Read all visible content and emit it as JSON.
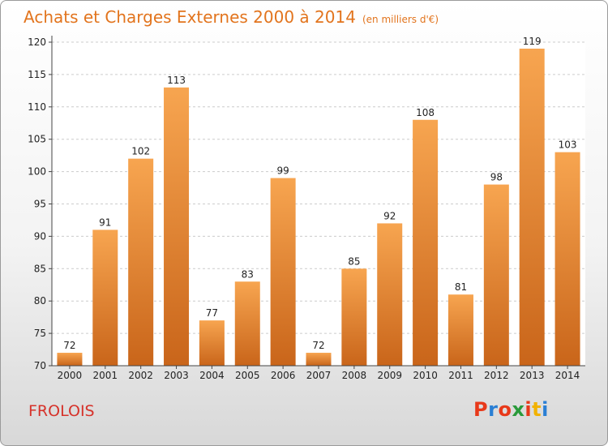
{
  "title": "Achats et Charges Externes 2000 à 2014",
  "unit": "(en milliers d'€)",
  "place": "FROLOIS",
  "logo": {
    "text": "Proxiti",
    "colors": [
      "#e8391a",
      "#2a7fd4",
      "#e8391a",
      "#2a9a3a",
      "#e8391a",
      "#f2b200",
      "#2a7fd4"
    ]
  },
  "colors": {
    "bar_top": "#f7a550",
    "bar_bottom": "#c9651a",
    "title": "#e2741d",
    "place": "#d6322a",
    "grid": "#cccccc"
  },
  "chart_data": {
    "type": "bar",
    "categories": [
      "2000",
      "2001",
      "2002",
      "2003",
      "2004",
      "2005",
      "2006",
      "2007",
      "2008",
      "2009",
      "2010",
      "2011",
      "2012",
      "2013",
      "2014"
    ],
    "values": [
      72,
      91,
      102,
      113,
      77,
      83,
      99,
      72,
      85,
      92,
      108,
      81,
      98,
      119,
      103
    ],
    "ylim": [
      70,
      120
    ],
    "yticks": [
      70,
      75,
      80,
      85,
      90,
      95,
      100,
      105,
      110,
      115,
      120
    ],
    "grid": true,
    "title": "Achats et Charges Externes 2000 à 2014",
    "xlabel": "",
    "ylabel": ""
  }
}
